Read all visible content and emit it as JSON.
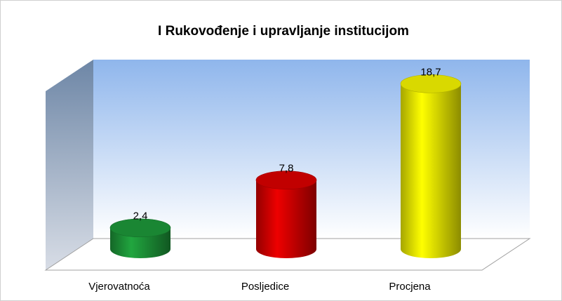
{
  "chart_data": {
    "type": "bar3d",
    "title": "I Rukovođenje i upravljanje institucijom",
    "categories": [
      "Vjerovatnoća",
      "Posljedice",
      "Procjena"
    ],
    "values": [
      2.4,
      7.8,
      18.7
    ],
    "value_labels": [
      "2,4",
      "7,8",
      "18,7"
    ],
    "colors": [
      "#1f9e3c",
      "#e30000",
      "#ffff00"
    ],
    "ylim": [
      0,
      20
    ]
  }
}
